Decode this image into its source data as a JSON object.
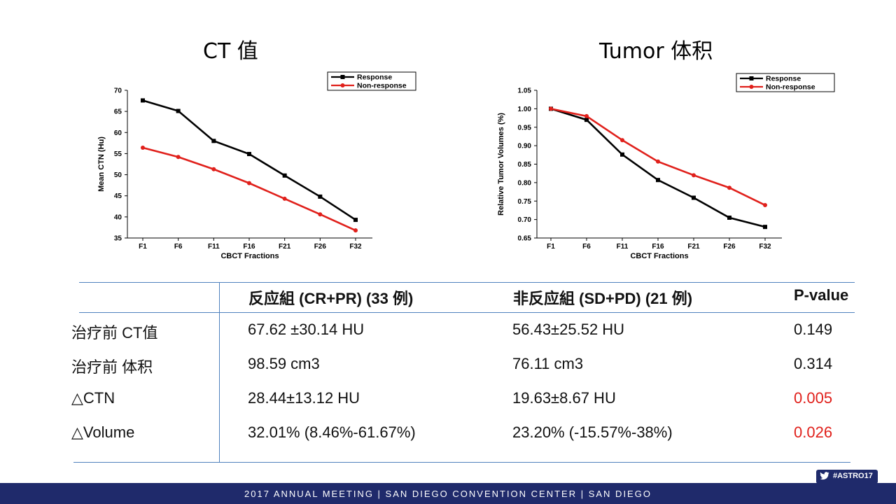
{
  "titles": {
    "left": "CT 值",
    "right": "Tumor 体积"
  },
  "chart_data": [
    {
      "type": "line",
      "xlabel": "CBCT Fractions",
      "ylabel": "Mean CTN (Hu)",
      "categories": [
        "F1",
        "F6",
        "F11",
        "F16",
        "F21",
        "F26",
        "F32"
      ],
      "ylim": [
        35,
        70
      ],
      "yticks": [
        "35",
        "40",
        "45",
        "50",
        "55",
        "60",
        "65",
        "70"
      ],
      "legend_position": "top-right",
      "series": [
        {
          "name": "Response",
          "color": "#000000",
          "marker": "square",
          "values": [
            67.6,
            65.1,
            58.0,
            54.9,
            49.8,
            44.8,
            39.3
          ]
        },
        {
          "name": "Non-response",
          "color": "#e0201b",
          "marker": "circle",
          "values": [
            56.4,
            54.2,
            51.3,
            48.0,
            44.3,
            40.6,
            36.8
          ]
        }
      ]
    },
    {
      "type": "line",
      "xlabel": "CBCT Fractions",
      "ylabel": "Relative Tumor Volumes (%)",
      "categories": [
        "F1",
        "F6",
        "F11",
        "F16",
        "F21",
        "F26",
        "F32"
      ],
      "ylim": [
        0.65,
        1.05
      ],
      "yticks": [
        "0.65",
        "0.70",
        "0.75",
        "0.80",
        "0.85",
        "0.90",
        "0.95",
        "1.00",
        "1.05"
      ],
      "legend_position": "top-right",
      "series": [
        {
          "name": "Response",
          "color": "#000000",
          "marker": "square",
          "values": [
            1.0,
            0.97,
            0.876,
            0.807,
            0.759,
            0.705,
            0.68
          ]
        },
        {
          "name": "Non-response",
          "color": "#e0201b",
          "marker": "circle",
          "values": [
            1.0,
            0.98,
            0.915,
            0.857,
            0.82,
            0.786,
            0.739
          ]
        }
      ]
    }
  ],
  "table": {
    "headers": [
      "",
      "反应組 (CR+PR) (33 例)",
      "非反应組 (SD+PD) (21 例)",
      "P-value"
    ],
    "rows": [
      {
        "label": "治疗前 CT值",
        "response": "67.62 ±30.14 HU",
        "nonresponse": "56.43±25.52 HU",
        "p": "0.149",
        "p_color": "#111111"
      },
      {
        "label": "治疗前 体积",
        "response": "98.59 cm3",
        "nonresponse": "76.11 cm3",
        "p": "0.314",
        "p_color": "#111111"
      },
      {
        "label": "△CTN",
        "response": "28.44±13.12 HU",
        "nonresponse": "19.63±8.67 HU",
        "p": "0.005",
        "p_color": "#e0201b"
      },
      {
        "label": "△Volume",
        "response": "32.01% (8.46%-61.67%)",
        "nonresponse": "23.20% (-15.57%-38%)",
        "p": "0.026",
        "p_color": "#e0201b"
      }
    ]
  },
  "footer": {
    "text": "2017 ANNUAL MEETING | SAN DIEGO CONVENTION CENTER | SAN DIEGO",
    "hashtag": "#ASTRO17",
    "twitter_icon": "twitter-bird-icon"
  },
  "colors": {
    "footer_bg": "#1f2a6b",
    "table_rule": "#4f81bd",
    "significant": "#e0201b"
  }
}
